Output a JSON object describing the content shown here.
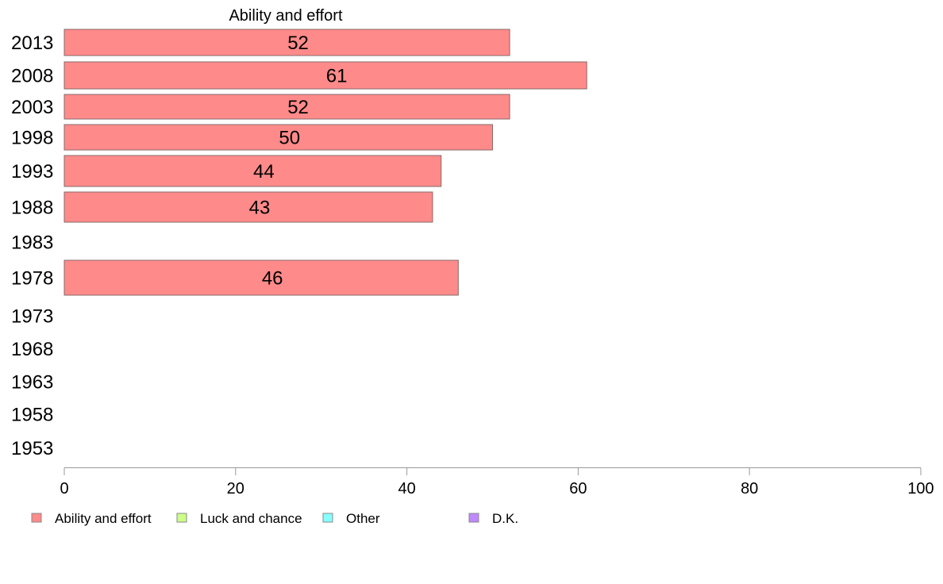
{
  "chart_data": {
    "type": "bar",
    "orientation": "horizontal",
    "title": "Ability and effort",
    "categories": [
      "2013",
      "2008",
      "2003",
      "1998",
      "1993",
      "1988",
      "1983",
      "1978",
      "1973",
      "1968",
      "1963",
      "1958",
      "1953"
    ],
    "series": [
      {
        "name": "Ability and effort",
        "color": "#ff8a8a",
        "values": [
          52,
          61,
          52,
          50,
          44,
          43,
          null,
          46,
          null,
          null,
          null,
          null,
          null
        ],
        "labels": [
          "52",
          "61",
          "52",
          "50",
          "44",
          "43",
          "",
          "46",
          "",
          "",
          "",
          "",
          ""
        ]
      }
    ],
    "xlim": [
      0,
      100
    ],
    "xticks": [
      "0",
      "20",
      "40",
      "60",
      "80",
      "100"
    ],
    "grid": false,
    "legend": {
      "placement": "bottom-left",
      "entries": [
        {
          "label": "Ability and effort",
          "color": "#ff8a8a"
        },
        {
          "label": "Luck and chance",
          "color": "#ccff88"
        },
        {
          "label": "Other",
          "color": "#88ffff"
        },
        {
          "label": "D.K.",
          "color": "#c088ff"
        }
      ]
    }
  }
}
